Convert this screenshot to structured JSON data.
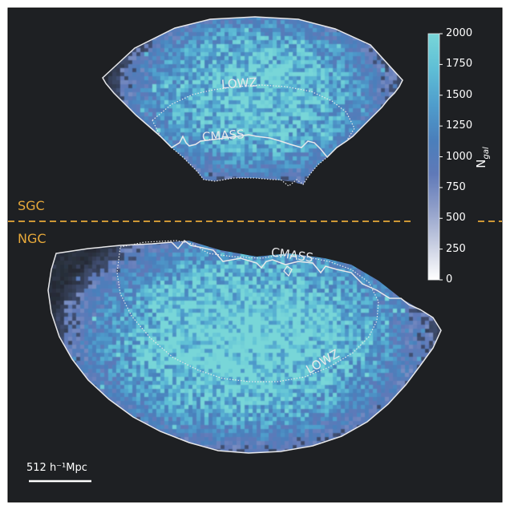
{
  "colors": {
    "background": "#1e2023",
    "border": "#000000",
    "divider": "#e8a93a",
    "outline": "#e8e8ea",
    "region_label": "#e8a93a"
  },
  "regions": {
    "sgc_label": "SGC",
    "ngc_label": "NGC"
  },
  "samples": {
    "lowz": "LOWZ",
    "cmass": "CMASS"
  },
  "scalebar": {
    "label": "512 h⁻¹Mpc"
  },
  "colorbar": {
    "title": "N",
    "title_sub": "gal",
    "ticks": [
      "0",
      "250",
      "500",
      "750",
      "1000",
      "1250",
      "1500",
      "1750",
      "2000"
    ],
    "cmap": [
      "#ffffff",
      "#c9cfe2",
      "#8f9ec9",
      "#5f79b8",
      "#4a7fbb",
      "#4f9dcc",
      "#5fbfd6",
      "#78d6d8"
    ]
  },
  "chart_data": {
    "type": "heatmap",
    "title": "",
    "value_label": "N_gal",
    "value_range": [
      0,
      2000
    ],
    "panels": [
      {
        "region": "SGC",
        "samples": [
          "LOWZ",
          "CMASS"
        ]
      },
      {
        "region": "NGC",
        "samples": [
          "CMASS",
          "LOWZ"
        ]
      }
    ],
    "scale": "512 h^-1 Mpc"
  }
}
